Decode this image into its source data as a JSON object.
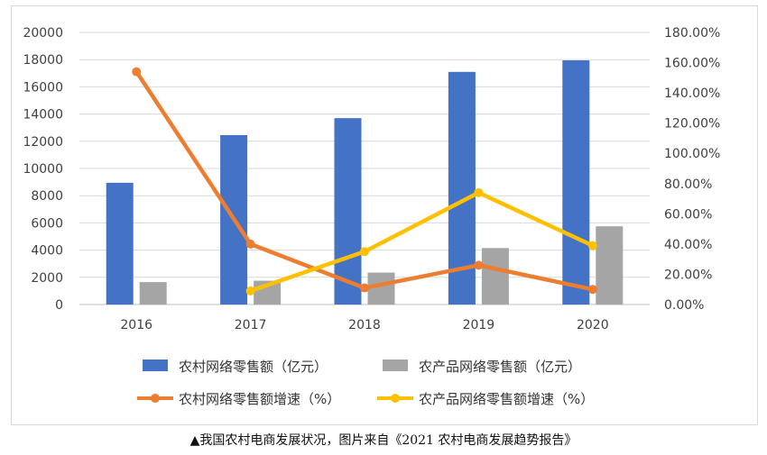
{
  "caption": "▲我国农村电商发展状况，图片来自《2021 农村电商发展趋势报告》",
  "chart_data": {
    "type": "bar",
    "categories": [
      "2016",
      "2017",
      "2018",
      "2019",
      "2020"
    ],
    "y_left": {
      "min": 0,
      "max": 20000,
      "step": 2000,
      "ticks": [
        "0",
        "2000",
        "4000",
        "6000",
        "8000",
        "10000",
        "12000",
        "14000",
        "16000",
        "18000",
        "20000"
      ]
    },
    "y_right": {
      "min": 0,
      "max": 180,
      "step": 20,
      "ticks": [
        "0.00%",
        "20.00%",
        "40.00%",
        "60.00%",
        "80.00%",
        "100.00%",
        "120.00%",
        "140.00%",
        "160.00%",
        "180.00%"
      ]
    },
    "grid": "horizontal",
    "legend_position": "bottom",
    "series": [
      {
        "name": "农村网络零售额（亿元）",
        "type": "bar",
        "axis": "left",
        "color": "#4472C4",
        "values": [
          8950,
          12450,
          13700,
          17100,
          17950
        ]
      },
      {
        "name": "农产品网络零售额（亿元）",
        "type": "bar",
        "axis": "left",
        "color": "#A5A5A5",
        "values": [
          1650,
          1750,
          2350,
          4150,
          5750
        ]
      },
      {
        "name": "农村网络零售额增速（%）",
        "type": "line",
        "axis": "right",
        "color": "#ED7D31",
        "values": [
          154,
          40,
          11,
          26,
          10
        ]
      },
      {
        "name": "农产品网络零售额增速（%）",
        "type": "line",
        "axis": "right",
        "color": "#FFC000",
        "values": [
          null,
          9,
          35,
          74,
          39
        ]
      }
    ]
  }
}
